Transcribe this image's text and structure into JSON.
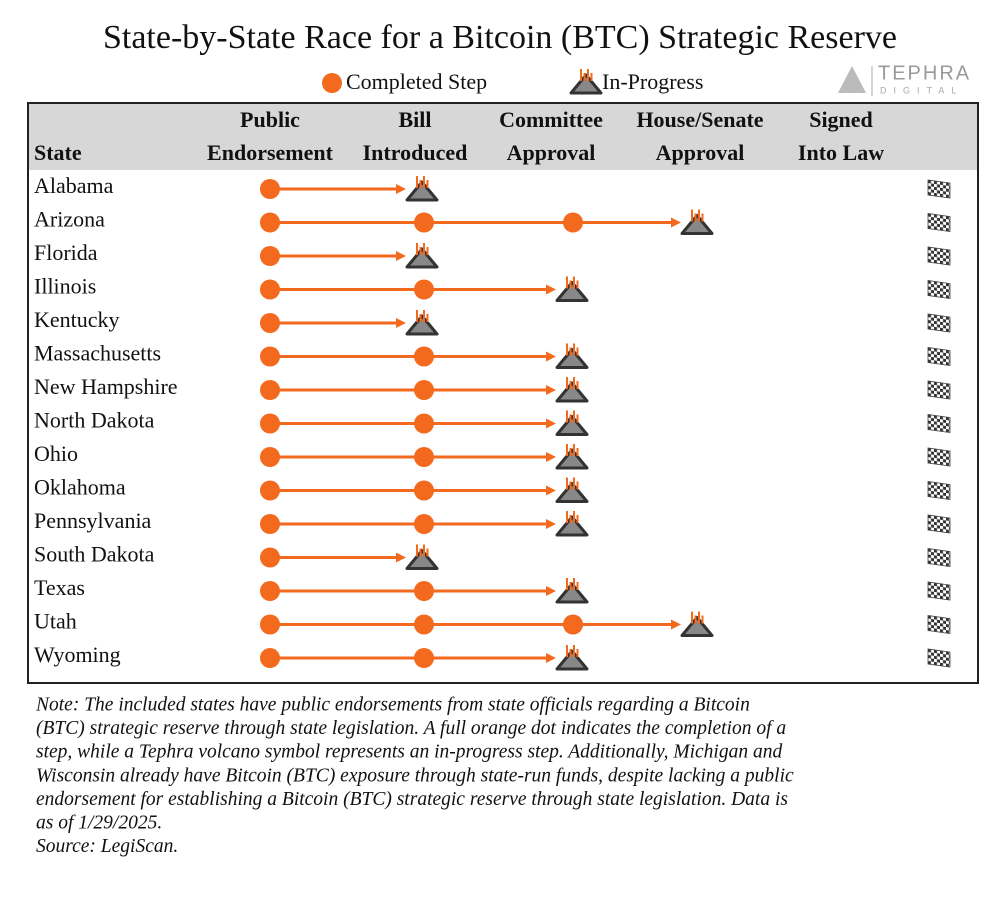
{
  "header": {
    "title": "State-by-State Race for a Bitcoin (BTC) Strategic Reserve",
    "legend": {
      "completed": "Completed Step",
      "in_progress": "In-Progress"
    },
    "logo": {
      "name": "TEPHRA",
      "tagline": "DIGITAL"
    }
  },
  "table": {
    "state_header": "State",
    "steps": [
      [
        "Public",
        "Endorsement"
      ],
      [
        "Bill",
        "Introduced"
      ],
      [
        "Committee",
        "Approval"
      ],
      [
        "House/Senate",
        "Approval"
      ],
      [
        "Signed",
        "Into Law"
      ]
    ],
    "rows": [
      {
        "state": "Alabama",
        "completed": 1,
        "in_progress": 2
      },
      {
        "state": "Arizona",
        "completed": 3,
        "in_progress": 4
      },
      {
        "state": "Florida",
        "completed": 1,
        "in_progress": 2
      },
      {
        "state": "Illinois",
        "completed": 2,
        "in_progress": 3
      },
      {
        "state": "Kentucky",
        "completed": 1,
        "in_progress": 2
      },
      {
        "state": "Massachusetts",
        "completed": 2,
        "in_progress": 3
      },
      {
        "state": "New Hampshire",
        "completed": 2,
        "in_progress": 3
      },
      {
        "state": "North Dakota",
        "completed": 2,
        "in_progress": 3
      },
      {
        "state": "Ohio",
        "completed": 2,
        "in_progress": 3
      },
      {
        "state": "Oklahoma",
        "completed": 2,
        "in_progress": 3
      },
      {
        "state": "Pennsylvania",
        "completed": 2,
        "in_progress": 3
      },
      {
        "state": "South Dakota",
        "completed": 1,
        "in_progress": 2
      },
      {
        "state": "Texas",
        "completed": 2,
        "in_progress": 3
      },
      {
        "state": "Utah",
        "completed": 3,
        "in_progress": 4
      },
      {
        "state": "Wyoming",
        "completed": 2,
        "in_progress": 3
      }
    ]
  },
  "footer": {
    "note": [
      "Note: The included states have public endorsements from state officials regarding a Bitcoin",
      "(BTC) strategic reserve through state legislation. A full orange dot indicates the completion of a",
      "step, while a Tephra volcano symbol represents an in-progress step. Additionally, Michigan and",
      "Wisconsin already have Bitcoin (BTC) exposure through state-run funds, despite lacking a public",
      "endorsement for establishing a Bitcoin (BTC) strategic reserve through state legislation. Data is",
      "as of 1/29/2025."
    ],
    "source": "Source: LegiScan."
  }
}
